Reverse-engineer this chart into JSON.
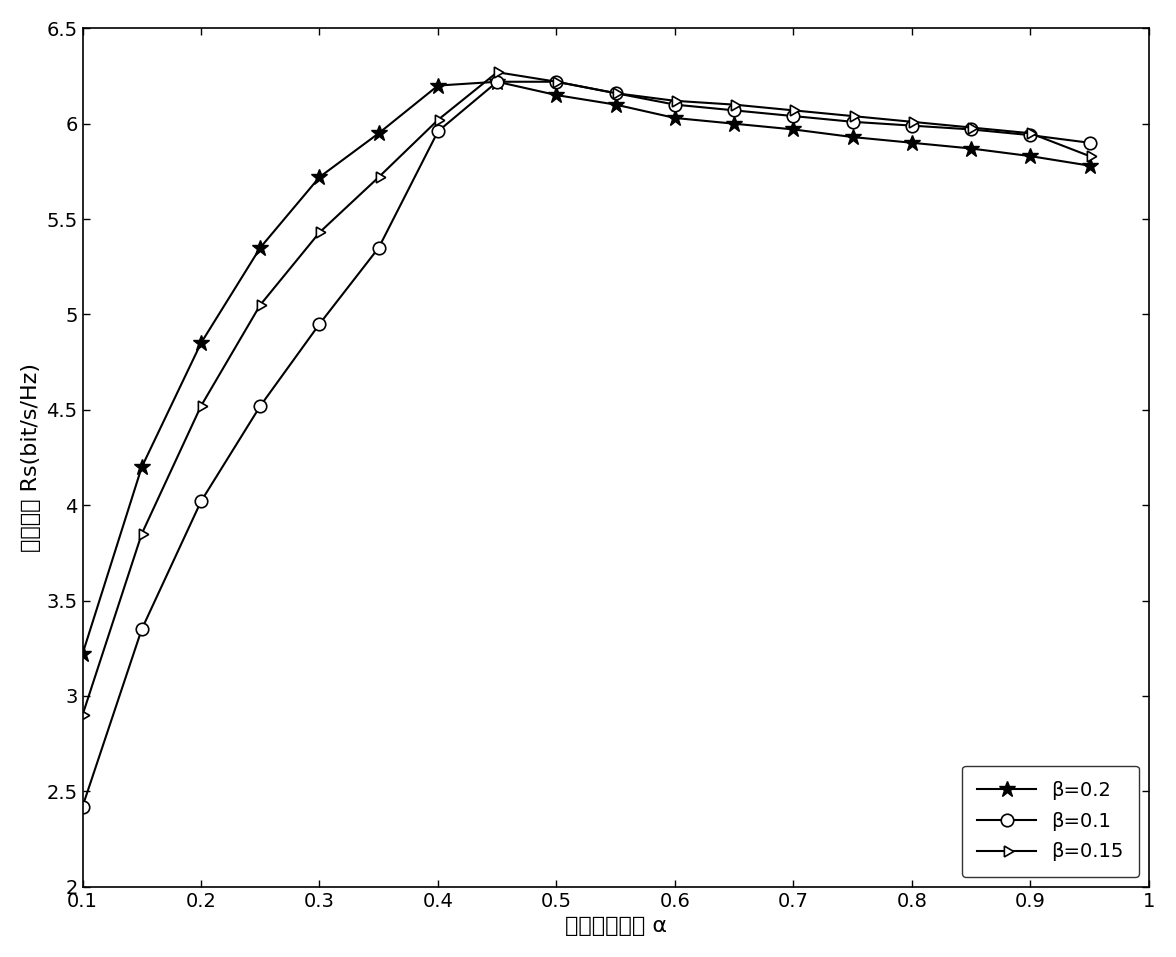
{
  "alpha": [
    0.1,
    0.15,
    0.2,
    0.25,
    0.3,
    0.35,
    0.4,
    0.45,
    0.5,
    0.55,
    0.6,
    0.65,
    0.7,
    0.75,
    0.8,
    0.85,
    0.9,
    0.95
  ],
  "beta_0_2": [
    3.22,
    4.2,
    4.85,
    5.35,
    5.72,
    5.95,
    6.2,
    6.22,
    6.15,
    6.1,
    6.03,
    6.0,
    5.97,
    5.93,
    5.9,
    5.87,
    5.83,
    5.78
  ],
  "beta_0_1": [
    2.42,
    3.35,
    4.02,
    4.52,
    4.95,
    5.35,
    5.96,
    6.22,
    6.22,
    6.16,
    6.1,
    6.07,
    6.04,
    6.01,
    5.99,
    5.97,
    5.94,
    5.9
  ],
  "beta_0_15": [
    2.9,
    3.85,
    4.52,
    5.05,
    5.43,
    5.72,
    6.02,
    6.27,
    6.22,
    6.16,
    6.12,
    6.1,
    6.07,
    6.04,
    6.01,
    5.98,
    5.95,
    5.83
  ],
  "xlim": [
    0.1,
    1.0
  ],
  "ylim": [
    2.0,
    6.5
  ],
  "xticks": [
    0.1,
    0.2,
    0.3,
    0.4,
    0.5,
    0.6,
    0.7,
    0.8,
    0.9,
    1.0
  ],
  "yticks": [
    2.0,
    2.5,
    3.0,
    3.5,
    4.0,
    4.5,
    5.0,
    5.5,
    6.0,
    6.5
  ],
  "xlabel": "能量收集因子 α",
  "ylabel": "安全速率 Rs(bit/s/Hz)",
  "legend_labels": [
    "β=0.2",
    "β=0.1",
    "β=0.15"
  ],
  "line_color": "#000000",
  "background_color": "#ffffff",
  "axis_fontsize": 16,
  "tick_fontsize": 14,
  "legend_fontsize": 14
}
